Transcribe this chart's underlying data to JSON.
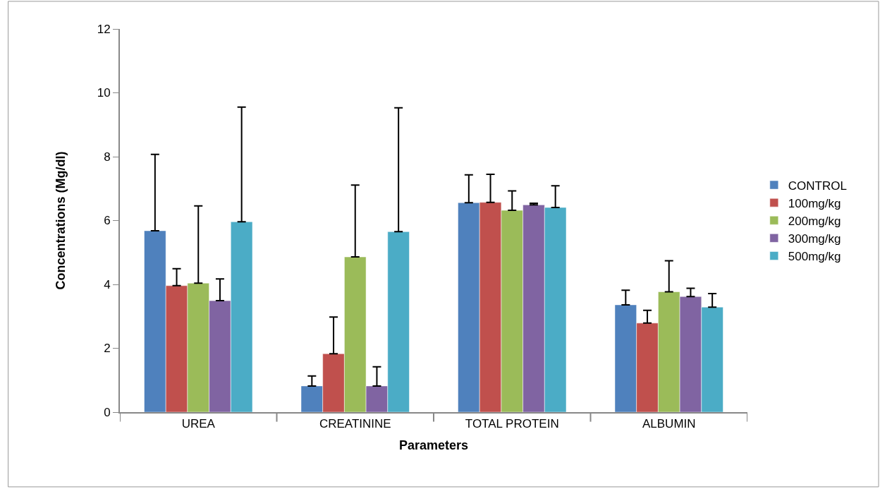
{
  "chart_data": {
    "type": "bar",
    "xlabel": "Parameters",
    "ylabel": "Concentrations (Mg/dl)",
    "categories": [
      "UREA",
      "CREATININE",
      "TOTAL PROTEIN",
      "ALBUMIN"
    ],
    "series": [
      {
        "name": "CONTROL",
        "color": "#4f81bd",
        "values": [
          5.68,
          0.82,
          6.56,
          3.36
        ],
        "errors": [
          [
            5.68,
            8.07
          ],
          [
            0.82,
            1.13
          ],
          [
            6.56,
            7.43
          ],
          [
            3.36,
            3.82
          ]
        ]
      },
      {
        "name": "100mg/kg",
        "color": "#c0504d",
        "values": [
          3.96,
          1.83,
          6.57,
          2.79
        ],
        "errors": [
          [
            3.96,
            4.49
          ],
          [
            1.83,
            2.98
          ],
          [
            6.57,
            7.45
          ],
          [
            2.79,
            3.19
          ]
        ]
      },
      {
        "name": "200mg/kg",
        "color": "#9bbb59",
        "values": [
          4.04,
          4.86,
          6.32,
          3.77
        ],
        "errors": [
          [
            4.04,
            6.46
          ],
          [
            4.86,
            7.11
          ],
          [
            6.32,
            6.93
          ],
          [
            3.77,
            4.74
          ]
        ]
      },
      {
        "name": "300mg/kg",
        "color": "#8064a2",
        "values": [
          3.49,
          0.82,
          6.49,
          3.62
        ],
        "errors": [
          [
            3.49,
            4.17
          ],
          [
            0.82,
            1.42
          ],
          [
            6.49,
            6.54
          ],
          [
            3.62,
            3.88
          ]
        ]
      },
      {
        "name": "500mg/kg",
        "color": "#4bacc6",
        "values": [
          5.96,
          5.65,
          6.41,
          3.29
        ],
        "errors": [
          [
            5.96,
            9.55
          ],
          [
            5.65,
            9.53
          ],
          [
            6.41,
            7.09
          ],
          [
            3.29,
            3.71
          ]
        ]
      }
    ],
    "ylim": [
      0,
      12
    ],
    "yticks": [
      0,
      2,
      4,
      6,
      8,
      10,
      12
    ],
    "legend": "right"
  }
}
